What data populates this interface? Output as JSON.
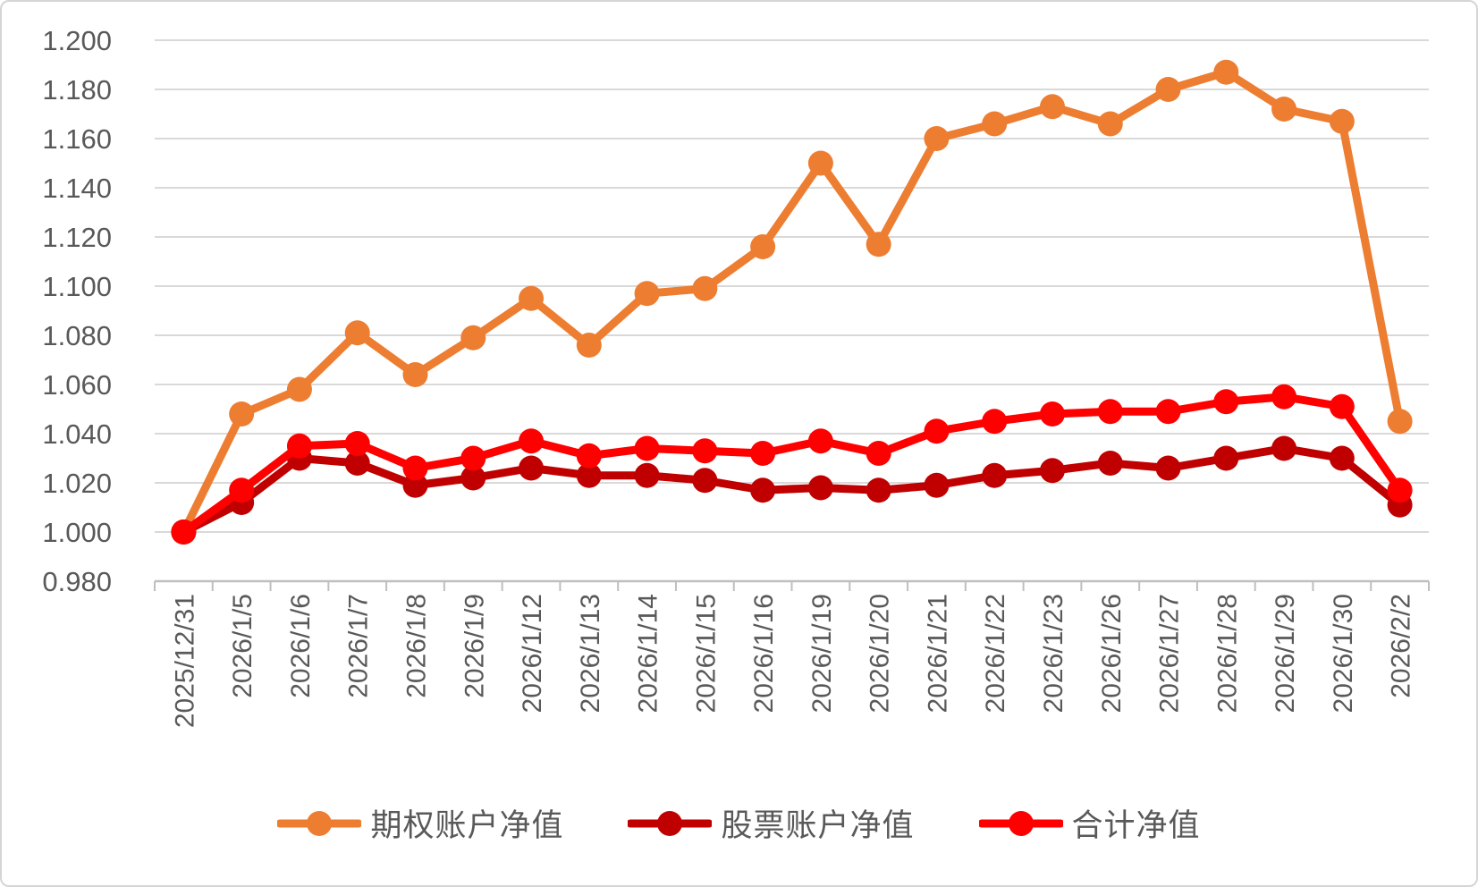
{
  "chart_data": {
    "type": "line",
    "title": "",
    "categories": [
      "2025/12/31",
      "2026/1/5",
      "2026/1/6",
      "2026/1/7",
      "2026/1/8",
      "2026/1/9",
      "2026/1/12",
      "2026/1/13",
      "2026/1/14",
      "2026/1/15",
      "2026/1/16",
      "2026/1/19",
      "2026/1/20",
      "2026/1/21",
      "2026/1/22",
      "2026/1/23",
      "2026/1/26",
      "2026/1/27",
      "2026/1/28",
      "2026/1/29",
      "2026/1/30",
      "2026/2/2"
    ],
    "series": [
      {
        "name": "期权账户净值",
        "color": "#ED7D31",
        "values": [
          1.0,
          1.048,
          1.058,
          1.081,
          1.064,
          1.079,
          1.095,
          1.076,
          1.097,
          1.099,
          1.116,
          1.15,
          1.117,
          1.16,
          1.166,
          1.173,
          1.166,
          1.18,
          1.187,
          1.172,
          1.167,
          1.045
        ]
      },
      {
        "name": "股票账户净值",
        "color": "#C00000",
        "values": [
          1.0,
          1.012,
          1.03,
          1.028,
          1.019,
          1.022,
          1.026,
          1.023,
          1.023,
          1.021,
          1.017,
          1.018,
          1.017,
          1.019,
          1.023,
          1.025,
          1.028,
          1.026,
          1.03,
          1.034,
          1.03,
          1.011
        ]
      },
      {
        "name": "合计净值",
        "color": "#FF0000",
        "values": [
          1.0,
          1.017,
          1.035,
          1.036,
          1.026,
          1.03,
          1.037,
          1.031,
          1.034,
          1.033,
          1.032,
          1.037,
          1.032,
          1.041,
          1.045,
          1.048,
          1.049,
          1.049,
          1.053,
          1.055,
          1.051,
          1.017
        ]
      }
    ],
    "ylim": [
      0.98,
      1.2
    ],
    "ytick_labels": [
      "0.980",
      "1.000",
      "1.020",
      "1.040",
      "1.060",
      "1.080",
      "1.100",
      "1.120",
      "1.140",
      "1.160",
      "1.180",
      "1.200"
    ],
    "grid": true,
    "legend_position": "bottom",
    "grid_color": "#D9D9D9",
    "axis_color": "#BFBFBF",
    "label_color": "#595959"
  }
}
